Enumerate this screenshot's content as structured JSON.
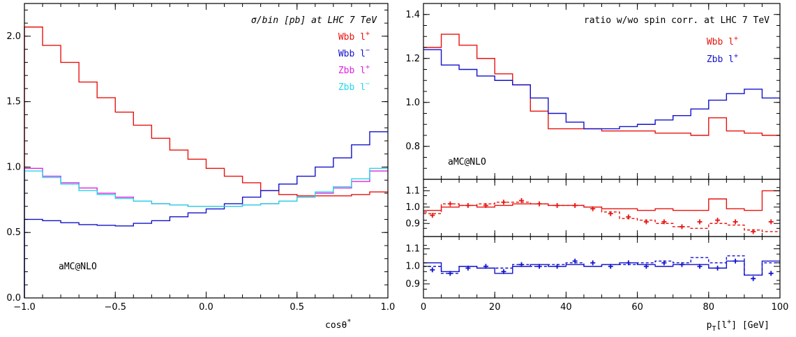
{
  "chart_data": [
    {
      "type": "line",
      "step": true,
      "title": "σ/bin [pb]  at LHC 7 TeV",
      "annotation": "aMC@NLO",
      "xlabel": "cosθ*",
      "xlabel_base": "cosθ",
      "xlabel_sup": "*",
      "ylabel": "",
      "xlim": [
        -1.0,
        1.0
      ],
      "ylim": [
        0.0,
        2.25
      ],
      "xticks": [
        -1.0,
        -0.5,
        0.0,
        0.5,
        1.0
      ],
      "xtick_labels": [
        "−1.0",
        "−0.5",
        "0.0",
        "0.5",
        "1.0"
      ],
      "yticks": [
        0.0,
        0.5,
        1.0,
        1.5,
        2.0
      ],
      "ytick_labels": [
        "0.0",
        "0.5",
        "1.0",
        "1.5",
        "2.0"
      ],
      "bin_edges": [
        -1.0,
        -0.9,
        -0.8,
        -0.7,
        -0.6,
        -0.5,
        -0.4,
        -0.3,
        -0.2,
        -0.1,
        0.0,
        0.1,
        0.2,
        0.3,
        0.4,
        0.5,
        0.6,
        0.7,
        0.8,
        0.9,
        1.0
      ],
      "legend_position": "top-right",
      "series": [
        {
          "name": "Wbb l+",
          "label_base": "Wbb l",
          "label_sup": "+",
          "color": "#e8130f",
          "values": [
            2.07,
            1.93,
            1.8,
            1.65,
            1.53,
            1.42,
            1.32,
            1.22,
            1.13,
            1.06,
            0.99,
            0.93,
            0.88,
            0.82,
            0.79,
            0.78,
            0.78,
            0.78,
            0.79,
            0.81
          ]
        },
        {
          "name": "Wbb l−",
          "label_base": "Wbb l",
          "label_sup": "−",
          "color": "#1212cc",
          "values": [
            0.6,
            0.59,
            0.575,
            0.56,
            0.555,
            0.55,
            0.57,
            0.59,
            0.62,
            0.65,
            0.68,
            0.72,
            0.77,
            0.82,
            0.87,
            0.93,
            1.0,
            1.07,
            1.17,
            1.27
          ]
        },
        {
          "name": "Zbb l+",
          "label_base": "Zbb l",
          "label_sup": "+",
          "color": "#e020e0",
          "values": [
            0.99,
            0.93,
            0.88,
            0.84,
            0.8,
            0.77,
            0.74,
            0.72,
            0.71,
            0.7,
            0.7,
            0.7,
            0.71,
            0.72,
            0.74,
            0.77,
            0.8,
            0.84,
            0.89,
            0.97
          ]
        },
        {
          "name": "Zbb l−",
          "label_base": "Zbb l",
          "label_sup": "−",
          "color": "#22d8e8",
          "values": [
            0.97,
            0.92,
            0.87,
            0.82,
            0.79,
            0.76,
            0.74,
            0.72,
            0.71,
            0.7,
            0.7,
            0.7,
            0.71,
            0.72,
            0.74,
            0.77,
            0.81,
            0.85,
            0.91,
            0.99
          ]
        }
      ]
    },
    {
      "type": "line",
      "step": true,
      "title": "ratio w/wo spin corr. at LHC 7 TeV",
      "annotation": "aMC@NLO",
      "xlabel": "pT[l+] [GeV]",
      "xlabel_base": "p",
      "xlabel_sub": "T",
      "xlabel_rest": "[l",
      "xlabel_sup": "+",
      "xlabel_end": "] [GeV]",
      "ylabel": "",
      "xlim": [
        0,
        100
      ],
      "ylim": [
        0.65,
        1.45
      ],
      "xticks": [
        0,
        20,
        40,
        60,
        80,
        100
      ],
      "xtick_labels": [
        "0",
        "20",
        "40",
        "60",
        "80",
        "100"
      ],
      "yticks": [
        0.8,
        1.0,
        1.2,
        1.4
      ],
      "ytick_labels": [
        "0.8",
        "1.0",
        "1.2",
        "1.4"
      ],
      "bin_edges": [
        0,
        5,
        10,
        15,
        20,
        25,
        30,
        35,
        40,
        45,
        50,
        55,
        60,
        65,
        70,
        75,
        80,
        85,
        90,
        95,
        100
      ],
      "legend_position": "top-right",
      "series": [
        {
          "name": "Wbb l+",
          "label_base": "Wbb l",
          "label_sup": "+",
          "color": "#e8130f",
          "values": [
            1.25,
            1.31,
            1.26,
            1.2,
            1.13,
            1.08,
            0.96,
            0.88,
            0.88,
            0.88,
            0.87,
            0.87,
            0.87,
            0.86,
            0.86,
            0.85,
            0.93,
            0.87,
            0.86,
            0.85
          ]
        },
        {
          "name": "Zbb l+",
          "label_base": "Zbb l",
          "label_sup": "+",
          "color": "#1212cc",
          "values": [
            1.24,
            1.17,
            1.15,
            1.12,
            1.1,
            1.08,
            1.02,
            0.95,
            0.91,
            0.88,
            0.88,
            0.89,
            0.9,
            0.92,
            0.94,
            0.97,
            1.01,
            1.04,
            1.06,
            1.02
          ]
        }
      ]
    },
    {
      "type": "line",
      "step": true,
      "title": "",
      "xlim": [
        0,
        100
      ],
      "ylim": [
        0.82,
        1.17
      ],
      "yticks": [
        0.9,
        1.0,
        1.1
      ],
      "ytick_labels": [
        "0.9",
        "1.0",
        "1.1"
      ],
      "xticks": [
        0,
        20,
        40,
        60,
        80,
        100
      ],
      "bin_edges": [
        0,
        5,
        10,
        15,
        20,
        25,
        30,
        35,
        40,
        45,
        50,
        55,
        60,
        65,
        70,
        75,
        80,
        85,
        90,
        95,
        100
      ],
      "series": [
        {
          "name": "",
          "style": "solid",
          "color": "#e8130f",
          "values": [
            0.98,
            1.0,
            1.01,
            1.0,
            1.01,
            1.02,
            1.02,
            1.01,
            1.01,
            1.0,
            0.99,
            0.99,
            0.98,
            0.99,
            0.98,
            0.98,
            1.05,
            0.99,
            0.98,
            1.1
          ]
        },
        {
          "name": "",
          "style": "dashed",
          "color": "#e8130f",
          "values": [
            0.96,
            1.02,
            1.01,
            1.02,
            1.03,
            1.03,
            1.02,
            1.01,
            1.01,
            1.0,
            0.97,
            0.93,
            0.92,
            0.9,
            0.88,
            0.87,
            0.9,
            0.89,
            0.86,
            0.85
          ]
        },
        {
          "name": "",
          "style": "markers",
          "color": "#e8130f",
          "x": [
            2.5,
            7.5,
            12.5,
            17.5,
            22.5,
            27.5,
            32.5,
            37.5,
            42.5,
            47.5,
            52.5,
            57.5,
            62.5,
            67.5,
            72.5,
            77.5,
            82.5,
            87.5,
            92.5,
            97.5
          ],
          "values": [
            0.95,
            1.02,
            1.01,
            1.01,
            1.03,
            1.04,
            1.02,
            1.01,
            1.01,
            0.99,
            0.96,
            0.94,
            0.91,
            0.91,
            0.88,
            0.91,
            0.92,
            0.91,
            0.85,
            0.91
          ]
        }
      ]
    },
    {
      "type": "line",
      "step": true,
      "title": "",
      "xlim": [
        0,
        100
      ],
      "ylim": [
        0.82,
        1.17
      ],
      "yticks": [
        0.9,
        1.0,
        1.1
      ],
      "ytick_labels": [
        "0.9",
        "1.0",
        "1.1"
      ],
      "xticks": [
        0,
        20,
        40,
        60,
        80,
        100
      ],
      "bin_edges": [
        0,
        5,
        10,
        15,
        20,
        25,
        30,
        35,
        40,
        45,
        50,
        55,
        60,
        65,
        70,
        75,
        80,
        85,
        90,
        95,
        100
      ],
      "series": [
        {
          "name": "",
          "style": "solid",
          "color": "#1212cc",
          "values": [
            1.02,
            0.97,
            1.0,
            0.99,
            0.96,
            1.0,
            1.01,
            1.0,
            1.01,
            1.0,
            1.01,
            1.02,
            1.01,
            1.0,
            1.01,
            1.01,
            0.99,
            1.03,
            0.95,
            1.03
          ]
        },
        {
          "name": "",
          "style": "dashed",
          "color": "#1212cc",
          "values": [
            1.0,
            0.96,
            1.0,
            0.99,
            0.99,
            1.01,
            1.0,
            1.01,
            1.02,
            1.0,
            1.01,
            1.01,
            1.02,
            1.03,
            1.02,
            1.05,
            1.02,
            1.06,
            0.95,
            1.02
          ]
        },
        {
          "name": "",
          "style": "markers",
          "color": "#1212cc",
          "x": [
            2.5,
            7.5,
            12.5,
            17.5,
            22.5,
            27.5,
            32.5,
            37.5,
            42.5,
            47.5,
            52.5,
            57.5,
            62.5,
            67.5,
            72.5,
            77.5,
            82.5,
            87.5,
            92.5,
            97.5
          ],
          "values": [
            0.98,
            0.96,
            0.99,
            1.0,
            0.97,
            1.01,
            1.0,
            1.0,
            1.03,
            1.02,
            1.0,
            1.02,
            1.0,
            1.02,
            1.01,
            1.0,
            0.99,
            1.03,
            0.93,
            0.96
          ]
        }
      ]
    }
  ]
}
